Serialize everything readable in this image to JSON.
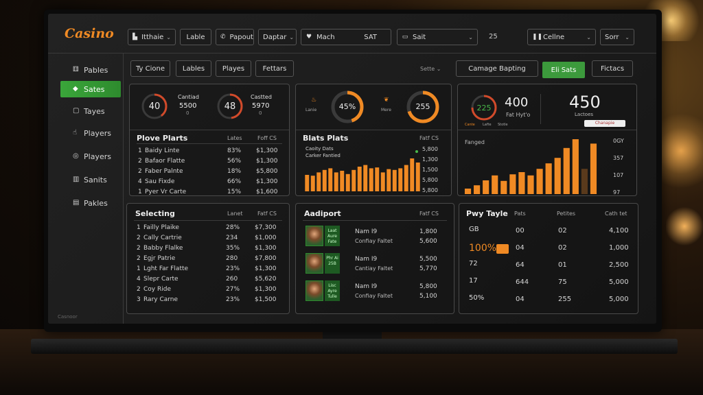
{
  "app": {
    "logo": "Casino"
  },
  "topbar": {
    "items": [
      {
        "label": "Itthaie",
        "icon": "table-icon"
      },
      {
        "label": "Lable"
      },
      {
        "label": "Papout",
        "icon": "phone-icon"
      },
      {
        "label": "Daptar"
      },
      {
        "label": "Mach",
        "value": "SAT",
        "icon": "heart-icon"
      },
      {
        "label": "Sait",
        "icon": "card-icon"
      }
    ],
    "count": "25",
    "pause_label": "Cellne",
    "sort_label": "Sorr"
  },
  "sidebar": {
    "items": [
      {
        "label": "Pables",
        "icon": "dice-icon"
      },
      {
        "label": "Sates",
        "icon": "tag-icon"
      },
      {
        "label": "Tayes",
        "icon": "screen-icon"
      },
      {
        "label": "Players",
        "icon": "hand-icon"
      },
      {
        "label": "Players",
        "icon": "chip-icon"
      },
      {
        "label": "Sanits",
        "icon": "book-icon"
      },
      {
        "label": "Pakles",
        "icon": "deck-icon"
      }
    ],
    "footer": "Casnoor"
  },
  "subtabs": [
    "Ty Cione",
    "Lables",
    "Playes",
    "Fettars"
  ],
  "filter_label": "Sette",
  "actions": {
    "primary": "Camage Bapting",
    "green": "Eli Sats",
    "secondary": "Fictacs"
  },
  "panel1": {
    "gauges": [
      {
        "value": "40",
        "label": "Cantiad",
        "amount": "5500",
        "sub": "0",
        "fraction": 0.4
      },
      {
        "value": "48",
        "label": "Castted",
        "amount": "5970",
        "sub": "0",
        "fraction": 0.48
      }
    ],
    "title": "Plove Plarts",
    "col_a": "Lates",
    "col_b": "Foff CS",
    "rows": [
      {
        "n": "1",
        "name": "Baidy Linte",
        "pct": "83%",
        "amt": "$1,300"
      },
      {
        "n": "2",
        "name": "Bafaor Flatte",
        "pct": "56%",
        "amt": "$1,300"
      },
      {
        "n": "2",
        "name": "Faber Palnte",
        "pct": "18%",
        "amt": "$5,800"
      },
      {
        "n": "4",
        "name": "Sau Fixde",
        "pct": "66%",
        "amt": "$1,300"
      },
      {
        "n": "1",
        "name": "Pyer Vr Carte",
        "pct": "15%",
        "amt": "$1,600"
      }
    ]
  },
  "panel2": {
    "gauges": [
      {
        "value": "45%",
        "label": "Lanie",
        "fraction": 0.45
      },
      {
        "value": "255",
        "label": "Mere",
        "fraction": 0.7
      }
    ],
    "title": "Blats Plats",
    "col": "Fatf CS",
    "legend1": "Caoity Dats",
    "legend2": "Carker Fantied",
    "ticks": [
      "5,800",
      "1,300",
      "1,500",
      "5,800",
      "5,800"
    ]
  },
  "panel3": {
    "gauge": {
      "value": "225",
      "fraction": 0.75,
      "a": "Cante",
      "b": "Lafte",
      "c": "Stotle"
    },
    "big1": "400",
    "big1_label": "Fat Hyt'o",
    "big2": "450",
    "big2_label": "Lactoes",
    "badge": "Chanapie",
    "chart_title": "Fanged",
    "y_ticks": [
      "0GY",
      "357",
      "107",
      "97"
    ]
  },
  "panel4": {
    "title": "Selecting",
    "col_a": "Lanet",
    "col_b": "Fatf CS",
    "rows": [
      {
        "n": "1",
        "name": "Failly Plaike",
        "pct": "28%",
        "amt": "$7,300"
      },
      {
        "n": "2",
        "name": "Cally Cartrie",
        "pct": "234",
        "amt": "$1,000"
      },
      {
        "n": "2",
        "name": "Babby Flalke",
        "pct": "35%",
        "amt": "$1,300"
      },
      {
        "n": "2",
        "name": "Egjr Patrie",
        "pct": "280",
        "amt": "$7,800"
      },
      {
        "n": "1",
        "name": "Lght Far Flatte",
        "pct": "23%",
        "amt": "$1,300"
      },
      {
        "n": "4",
        "name": "Slepr Carte",
        "pct": "260",
        "amt": "$5,620"
      },
      {
        "n": "2",
        "name": "Coy Ride",
        "pct": "27%",
        "amt": "$1,300"
      },
      {
        "n": "3",
        "name": "Rary Carne",
        "pct": "23%",
        "amt": "$1,500"
      }
    ]
  },
  "panel5": {
    "title": "Aadiport",
    "col": "Fatf CS",
    "rows": [
      {
        "chip": "Laat Aure Fate",
        "name": "Nam I9",
        "sub": "Confiay Faltet",
        "v1": "1,800",
        "v2": "5,600"
      },
      {
        "chip": "Phr Ai 25B",
        "name": "Nam I9",
        "sub": "Cantiay Faltet",
        "v1": "5,500",
        "v2": "5,770"
      },
      {
        "chip": "Lisc Ayre Tulle",
        "name": "Nam I9",
        "sub": "Confiay Faltet",
        "v1": "5,800",
        "v2": "5,100"
      }
    ]
  },
  "panel6": {
    "title": "Pwy Tayle",
    "cols": [
      "Pats",
      "Petites",
      "Cath tet"
    ],
    "rows": [
      {
        "a": "GB",
        "b": "00",
        "c": "02",
        "d": "4,100"
      },
      {
        "a": "100%",
        "b": "04",
        "c": "02",
        "d": "1,000"
      },
      {
        "a": "72",
        "b": "64",
        "c": "01",
        "d": "2,500"
      },
      {
        "a": "17",
        "b": "644",
        "c": "75",
        "d": "5,000"
      },
      {
        "a": "50%",
        "b": "04",
        "c": "255",
        "d": "5,000"
      }
    ]
  },
  "chart_data": [
    {
      "type": "bar",
      "title": "Blats Plats",
      "ylim": [
        0,
        10
      ],
      "values": [
        4,
        3.8,
        4.6,
        5.2,
        5.6,
        4.6,
        5,
        4.2,
        5.2,
        6,
        6.4,
        5.6,
        5.8,
        4.6,
        5.4,
        5.2,
        5.6,
        6.4,
        8,
        7
      ]
    },
    {
      "type": "bar",
      "title": "Fanged",
      "ylim": [
        0,
        10
      ],
      "values": [
        1,
        1.6,
        2.5,
        3.4,
        2.4,
        3.6,
        4,
        3.4,
        4.6,
        5.6,
        6.6,
        8.4,
        10,
        4.6,
        9.2
      ]
    }
  ]
}
